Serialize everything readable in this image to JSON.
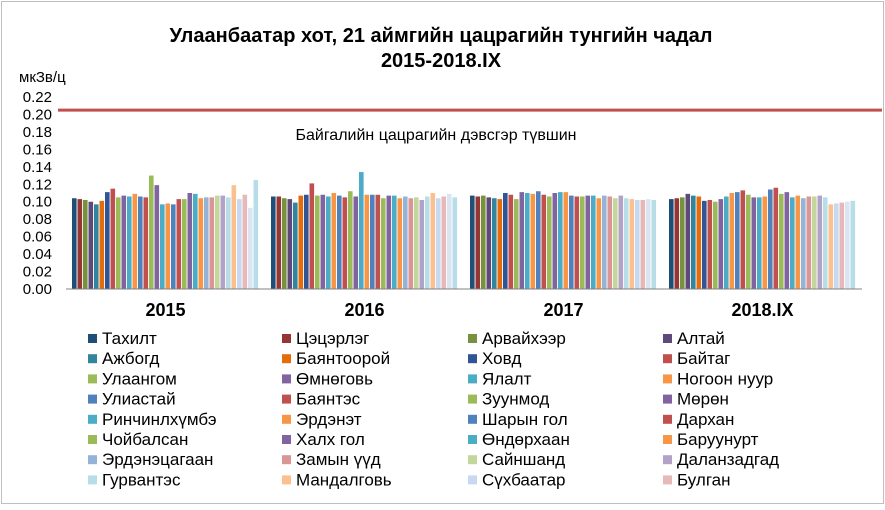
{
  "chart_data": {
    "type": "bar",
    "title_line1": "Улаанбаатар хот, 21 аймгийн цацрагийн тунгийн чадал",
    "title_line2": "2015-2018.IX",
    "ylabel": "мкЗв/ц",
    "ylim": [
      0,
      0.22
    ],
    "yticks": [
      "0.00",
      "0.02",
      "0.04",
      "0.06",
      "0.08",
      "0.10",
      "0.12",
      "0.14",
      "0.16",
      "0.18",
      "0.20",
      "0.22"
    ],
    "grid": false,
    "legend_placement": "bottom",
    "reference_line": {
      "value": 0.205,
      "label": "Байгалийн цацрагийн дэвсгэр түвшин",
      "color": "#c0504d"
    },
    "categories": [
      "2015",
      "2016",
      "2017",
      "2018.IX"
    ],
    "series": [
      {
        "name": "Тахилт",
        "color": "#1f4e79",
        "values": [
          0.104,
          0.106,
          0.107,
          0.103
        ]
      },
      {
        "name": "Цэцэрлэг",
        "color": "#963634",
        "values": [
          0.103,
          0.106,
          0.106,
          0.104
        ]
      },
      {
        "name": "Арвайхээр",
        "color": "#76923c",
        "values": [
          0.102,
          0.104,
          0.107,
          0.105
        ]
      },
      {
        "name": "Алтай",
        "color": "#5f497a",
        "values": [
          0.1,
          0.103,
          0.105,
          0.109
        ]
      },
      {
        "name": "Ажбогд",
        "color": "#31859c",
        "values": [
          0.097,
          0.099,
          0.104,
          0.107
        ]
      },
      {
        "name": "Баянтоорой",
        "color": "#e46c0a",
        "values": [
          0.101,
          0.107,
          0.103,
          0.106
        ]
      },
      {
        "name": "Ховд",
        "color": "#2f5597",
        "values": [
          0.111,
          0.108,
          0.11,
          0.101
        ]
      },
      {
        "name": "Байтаг",
        "color": "#c0504d",
        "values": [
          0.115,
          0.121,
          0.108,
          0.102
        ]
      },
      {
        "name": "Улаангом",
        "color": "#9bbb59",
        "values": [
          0.105,
          0.107,
          0.103,
          0.1
        ]
      },
      {
        "name": "Өмнөговь",
        "color": "#8064a2",
        "values": [
          0.107,
          0.108,
          0.111,
          0.103
        ]
      },
      {
        "name": "Ялалт",
        "color": "#4bacc6",
        "values": [
          0.106,
          0.106,
          0.11,
          0.106
        ]
      },
      {
        "name": "Ногоон нуур",
        "color": "#f79646",
        "values": [
          0.109,
          0.11,
          0.109,
          0.11
        ]
      },
      {
        "name": "Улиастай",
        "color": "#4f81bd",
        "values": [
          0.106,
          0.107,
          0.112,
          0.111
        ]
      },
      {
        "name": "Баянтэс",
        "color": "#c0504d",
        "values": [
          0.105,
          0.105,
          0.108,
          0.113
        ]
      },
      {
        "name": "Зуунмод",
        "color": "#9bbb59",
        "values": [
          0.13,
          0.112,
          0.106,
          0.108
        ]
      },
      {
        "name": "Мөрөн",
        "color": "#8064a2",
        "values": [
          0.119,
          0.106,
          0.11,
          0.105
        ]
      },
      {
        "name": "Ринчинлхүмбэ",
        "color": "#4bacc6",
        "values": [
          0.097,
          0.134,
          0.111,
          0.105
        ]
      },
      {
        "name": "Эрдэнэт",
        "color": "#f79646",
        "values": [
          0.098,
          0.108,
          0.111,
          0.106
        ]
      },
      {
        "name": "Шарын гол",
        "color": "#4f81bd",
        "values": [
          0.097,
          0.108,
          0.107,
          0.114
        ]
      },
      {
        "name": "Дархан",
        "color": "#c0504d",
        "values": [
          0.103,
          0.108,
          0.106,
          0.116
        ]
      },
      {
        "name": "Чойбалсан",
        "color": "#9bbb59",
        "values": [
          0.103,
          0.104,
          0.106,
          0.109
        ]
      },
      {
        "name": "Халх гол",
        "color": "#8064a2",
        "values": [
          0.11,
          0.107,
          0.107,
          0.111
        ]
      },
      {
        "name": "Өндөрхаан",
        "color": "#4bacc6",
        "values": [
          0.109,
          0.107,
          0.107,
          0.105
        ]
      },
      {
        "name": "Баруунурт",
        "color": "#f79646",
        "values": [
          0.104,
          0.104,
          0.104,
          0.107
        ]
      },
      {
        "name": "Эрдэнэцагаан",
        "color": "#95b3d7",
        "values": [
          0.105,
          0.106,
          0.107,
          0.104
        ]
      },
      {
        "name": "Замын үүд",
        "color": "#d99694",
        "values": [
          0.105,
          0.104,
          0.106,
          0.106
        ]
      },
      {
        "name": "Сайншанд",
        "color": "#c3d69b",
        "values": [
          0.107,
          0.105,
          0.104,
          0.106
        ]
      },
      {
        "name": "Даланзадгад",
        "color": "#b3a2c7",
        "values": [
          0.107,
          0.102,
          0.107,
          0.107
        ]
      },
      {
        "name": "Гурвантэс",
        "color": "#b7dee8",
        "values": [
          0.105,
          0.106,
          0.104,
          0.105
        ]
      },
      {
        "name": "Мандалговь",
        "color": "#fac090",
        "values": [
          0.119,
          0.11,
          0.103,
          0.097
        ]
      },
      {
        "name": "Сүхбаатар",
        "color": "#c6d9f1",
        "values": [
          0.103,
          0.104,
          0.102,
          0.098
        ]
      },
      {
        "name": "Булган",
        "color": "#e6b9b8",
        "values": [
          0.108,
          0.106,
          0.102,
          0.099
        ]
      },
      {
        "name": "",
        "color": "#dbe5f1",
        "values": [
          0.093,
          0.109,
          0.103,
          0.1
        ]
      },
      {
        "name": "",
        "color": "#b7dee8",
        "values": [
          0.125,
          0.105,
          0.102,
          0.101
        ]
      }
    ]
  }
}
